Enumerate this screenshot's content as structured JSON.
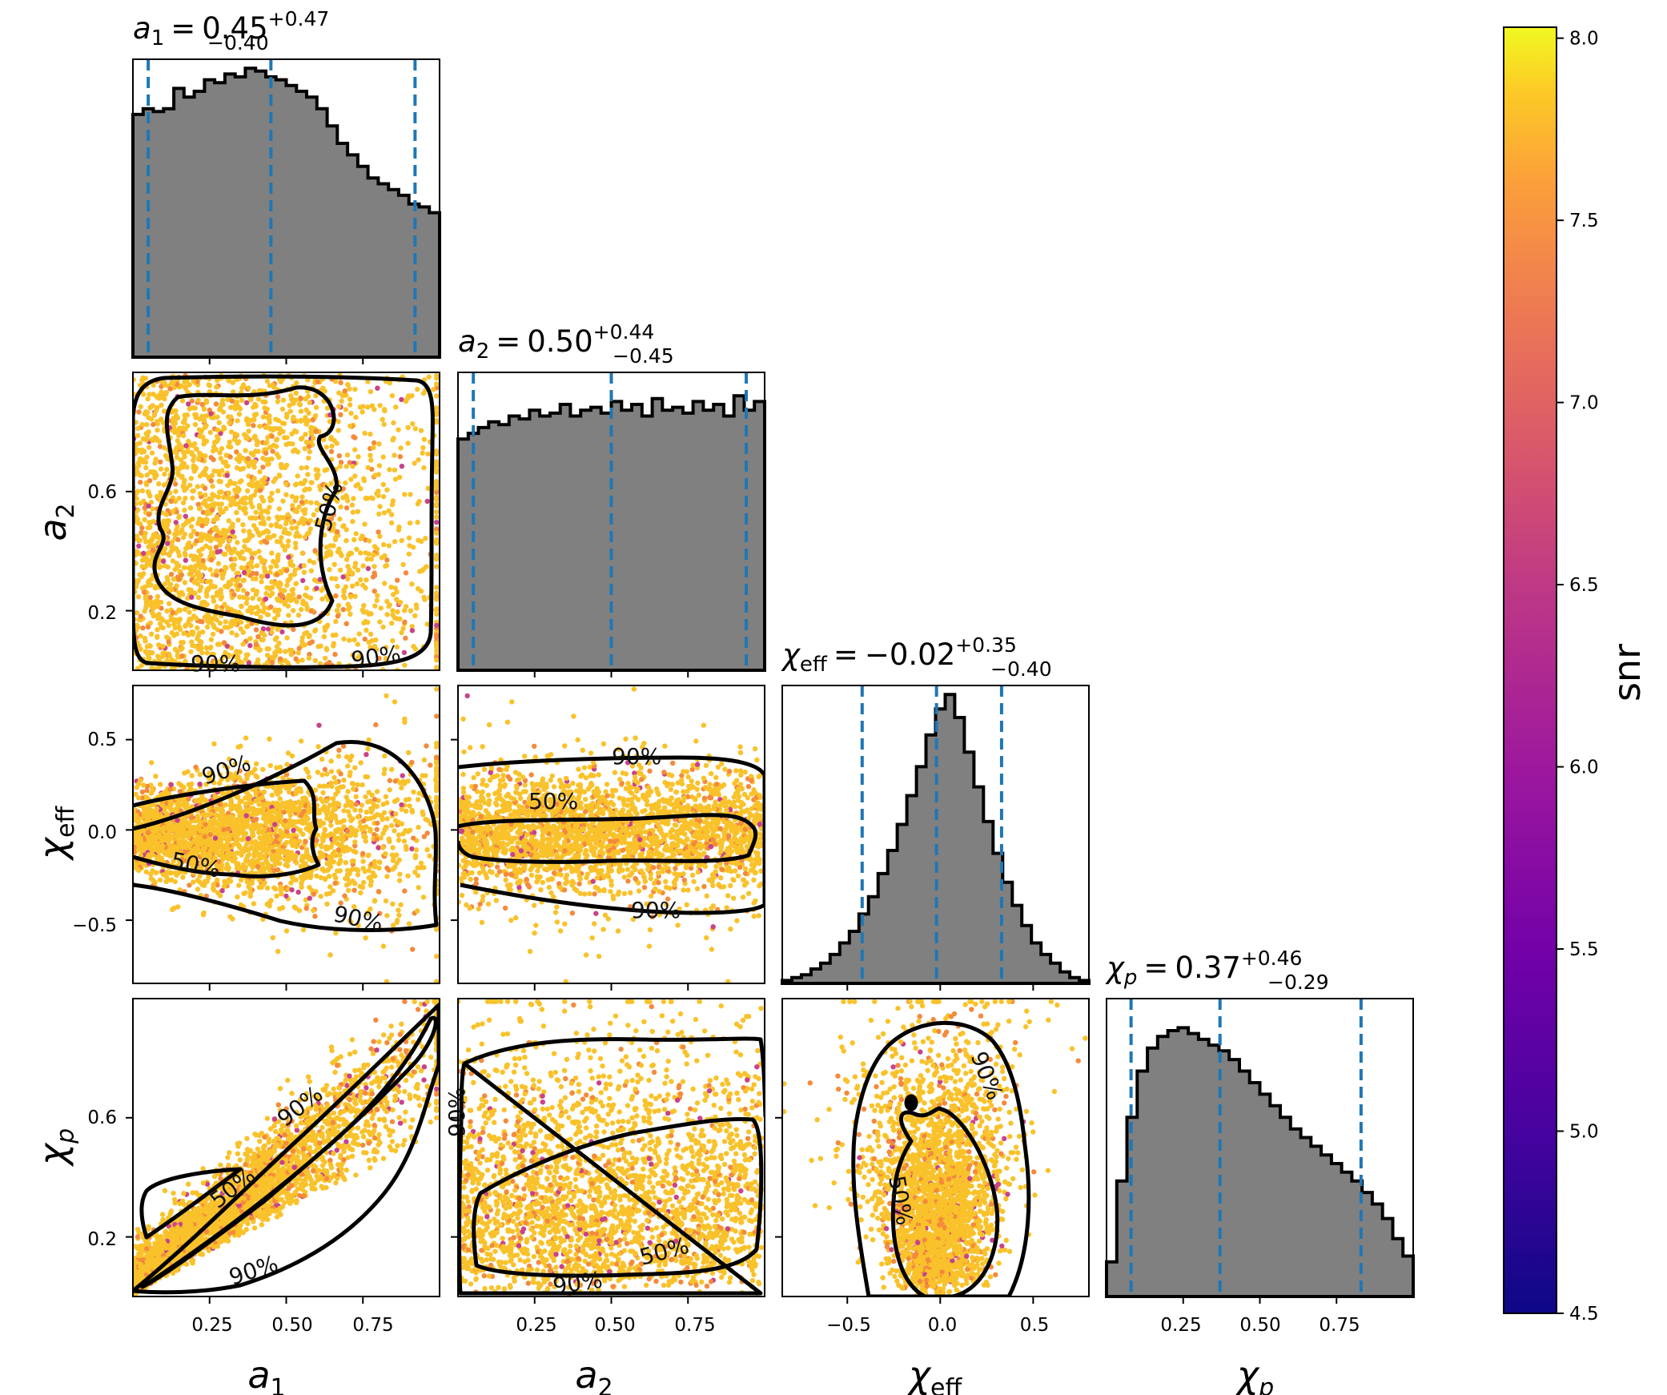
{
  "chart_data": {
    "type": "corner",
    "parameters": [
      {
        "symbol": "a",
        "sub": "1",
        "median": "0.45",
        "plus": "+0.47",
        "minus": "−0.40",
        "lim": [
          0.0,
          1.0
        ],
        "med": 0.45,
        "lo": 0.05,
        "hi": 0.92
      },
      {
        "symbol": "a",
        "sub": "2",
        "median": "0.50",
        "plus": "+0.44",
        "minus": "−0.45",
        "lim": [
          0.0,
          1.0
        ],
        "med": 0.5,
        "lo": 0.05,
        "hi": 0.94
      },
      {
        "symbol": "χ",
        "sub": "eff",
        "median": "−0.02",
        "plus": "+0.35",
        "minus": "−0.40",
        "lim": [
          -0.85,
          0.8
        ],
        "med": -0.02,
        "lo": -0.42,
        "hi": 0.33
      },
      {
        "symbol": "χ",
        "sub": "p",
        "median": "0.37",
        "plus": "+0.46",
        "minus": "−0.29",
        "lim": [
          0.0,
          1.0
        ],
        "med": 0.37,
        "lo": 0.08,
        "hi": 0.83
      }
    ],
    "title_eq": "=",
    "xticks": {
      "p0": [
        "0.25",
        "0.50",
        "0.75"
      ],
      "p1": [
        "0.25",
        "0.50",
        "0.75"
      ],
      "p2": [
        "−0.5",
        "0.0",
        "0.5"
      ],
      "p3": [
        "0.25",
        "0.50",
        "0.75"
      ]
    },
    "yticks": {
      "r1": [
        "0.6",
        "0.2"
      ],
      "r2": [
        "0.5",
        "0.0",
        "−0.5"
      ],
      "r3": [
        "0.6",
        "0.2"
      ]
    },
    "contour_labels": {
      "c50": "50%",
      "c90": "90%"
    },
    "histograms": {
      "a1": [
        0.84,
        0.86,
        0.85,
        0.86,
        0.93,
        0.9,
        0.92,
        0.96,
        0.95,
        0.98,
        0.97,
        1.0,
        0.99,
        0.97,
        0.96,
        0.94,
        0.92,
        0.9,
        0.86,
        0.8,
        0.74,
        0.7,
        0.66,
        0.62,
        0.6,
        0.58,
        0.56,
        0.53,
        0.52,
        0.5
      ],
      "a2": [
        0.8,
        0.82,
        0.84,
        0.86,
        0.85,
        0.88,
        0.87,
        0.9,
        0.88,
        0.89,
        0.92,
        0.88,
        0.9,
        0.91,
        0.89,
        0.93,
        0.9,
        0.92,
        0.88,
        0.94,
        0.9,
        0.91,
        0.89,
        0.93,
        0.9,
        0.92,
        0.88,
        0.95,
        0.9,
        0.93
      ],
      "chi_eff": [
        0.01,
        0.02,
        0.03,
        0.05,
        0.07,
        0.1,
        0.14,
        0.18,
        0.24,
        0.3,
        0.38,
        0.46,
        0.55,
        0.65,
        0.75,
        0.86,
        0.95,
        1.0,
        0.92,
        0.8,
        0.68,
        0.56,
        0.45,
        0.35,
        0.27,
        0.2,
        0.14,
        0.1,
        0.07,
        0.04,
        0.02,
        0.01
      ],
      "chi_p": [
        0.12,
        0.4,
        0.62,
        0.78,
        0.86,
        0.9,
        0.92,
        0.93,
        0.91,
        0.89,
        0.87,
        0.85,
        0.82,
        0.78,
        0.74,
        0.7,
        0.66,
        0.62,
        0.58,
        0.55,
        0.52,
        0.49,
        0.46,
        0.43,
        0.4,
        0.36,
        0.32,
        0.27,
        0.2,
        0.14
      ]
    },
    "colorbar": {
      "label": "snr",
      "range": [
        4.5,
        8.03
      ],
      "ticks": [
        "8.0",
        "7.5",
        "7.0",
        "6.5",
        "6.0",
        "5.5",
        "5.0",
        "4.5"
      ],
      "colormap": "plasma"
    },
    "colors": {
      "hist_fill": "#808080",
      "hist_edge": "#000000",
      "quantile_line": "#1f77b4",
      "contour": "#000000",
      "point_main": "#f9c22b",
      "point_alt": "#f48a3c",
      "point_rare": "#c8438a"
    }
  }
}
